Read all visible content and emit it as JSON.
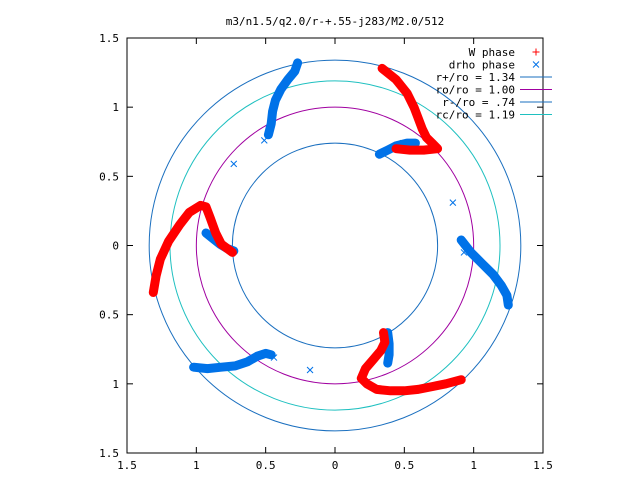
{
  "chart_data": {
    "type": "scatter",
    "title": "m3/n1.5/q2.0/r-+.55-j283/M2.0/512",
    "xlim": [
      -1.5,
      1.5
    ],
    "ylim": [
      -1.5,
      1.5
    ],
    "xticks": [
      -1.5,
      -1,
      -0.5,
      0,
      0.5,
      1,
      1.5
    ],
    "yticks": [
      -1.5,
      -1,
      -0.5,
      0,
      0.5,
      1,
      1.5
    ],
    "xtick_labels": [
      "1.5",
      "1",
      "0.5",
      "0",
      "0.5",
      "1",
      "1.5"
    ],
    "ytick_labels": [
      "1.5",
      "1",
      "0.5",
      "0",
      "0.5",
      "1",
      "1.5"
    ],
    "grid": false,
    "legend_position": "top-right",
    "series": [
      {
        "name": "W phase",
        "marker": "+",
        "color": "#ff0000",
        "arms": [
          [
            [
              0.34,
              1.28
            ],
            [
              0.44,
              1.2
            ],
            [
              0.52,
              1.1
            ],
            [
              0.57,
              1.0
            ],
            [
              0.6,
              0.92
            ],
            [
              0.63,
              0.84
            ],
            [
              0.66,
              0.78
            ],
            [
              0.7,
              0.74
            ],
            [
              0.74,
              0.7
            ],
            [
              0.64,
              0.69
            ],
            [
              0.54,
              0.69
            ],
            [
              0.44,
              0.7
            ]
          ],
          [
            [
              -1.31,
              -0.34
            ],
            [
              -1.29,
              -0.22
            ],
            [
              -1.26,
              -0.1
            ],
            [
              -1.2,
              0.03
            ],
            [
              -1.12,
              0.15
            ],
            [
              -1.05,
              0.24
            ],
            [
              -0.97,
              0.29
            ],
            [
              -0.93,
              0.28
            ],
            [
              -0.9,
              0.2
            ],
            [
              -0.86,
              0.09
            ],
            [
              -0.82,
              0.01
            ],
            [
              -0.74,
              -0.05
            ]
          ],
          [
            [
              0.91,
              -0.97
            ],
            [
              0.8,
              -1.0
            ],
            [
              0.7,
              -1.02
            ],
            [
              0.6,
              -1.04
            ],
            [
              0.5,
              -1.05
            ],
            [
              0.4,
              -1.05
            ],
            [
              0.3,
              -1.04
            ],
            [
              0.23,
              -1.0
            ],
            [
              0.19,
              -0.96
            ],
            [
              0.22,
              -0.89
            ],
            [
              0.28,
              -0.82
            ],
            [
              0.33,
              -0.76
            ],
            [
              0.36,
              -0.7
            ],
            [
              0.35,
              -0.63
            ]
          ]
        ]
      },
      {
        "name": "drho phase",
        "marker": "x",
        "color": "#0072e8",
        "arms": [
          [
            [
              -0.48,
              0.8
            ],
            [
              -0.46,
              0.88
            ],
            [
              -0.45,
              0.97
            ],
            [
              -0.43,
              1.05
            ],
            [
              -0.39,
              1.13
            ],
            [
              -0.34,
              1.2
            ],
            [
              -0.29,
              1.26
            ],
            [
              -0.27,
              1.32
            ]
          ],
          [
            [
              -0.93,
              0.09
            ],
            [
              -0.88,
              0.05
            ],
            [
              -0.83,
              0.01
            ],
            [
              -0.78,
              -0.02
            ],
            [
              -0.73,
              -0.04
            ]
          ],
          [
            [
              0.91,
              0.04
            ],
            [
              0.98,
              -0.05
            ],
            [
              1.06,
              -0.13
            ],
            [
              1.14,
              -0.21
            ],
            [
              1.2,
              -0.29
            ],
            [
              1.24,
              -0.36
            ],
            [
              1.25,
              -0.43
            ]
          ],
          [
            [
              0.38,
              -0.63
            ],
            [
              0.39,
              -0.71
            ],
            [
              0.39,
              -0.79
            ],
            [
              0.38,
              -0.85
            ]
          ],
          [
            [
              -1.02,
              -0.88
            ],
            [
              -0.92,
              -0.89
            ],
            [
              -0.82,
              -0.88
            ],
            [
              -0.72,
              -0.87
            ],
            [
              -0.63,
              -0.84
            ],
            [
              -0.56,
              -0.8
            ],
            [
              -0.5,
              -0.78
            ],
            [
              -0.46,
              -0.79
            ]
          ],
          [
            [
              0.32,
              0.66
            ],
            [
              0.38,
              0.69
            ],
            [
              0.44,
              0.72
            ],
            [
              0.52,
              0.74
            ],
            [
              0.58,
              0.74
            ]
          ]
        ],
        "scattered_points": [
          [
            -0.73,
            0.59
          ],
          [
            -0.51,
            0.76
          ],
          [
            0.85,
            0.31
          ],
          [
            0.93,
            -0.05
          ],
          [
            -0.44,
            -0.81
          ],
          [
            -0.18,
            -0.9
          ],
          [
            0.49,
            0.74
          ]
        ]
      }
    ],
    "circles": [
      {
        "label": "r+/ro = 1.34",
        "r": 1.34,
        "color": "#1a6fbf"
      },
      {
        "label": "ro/ro = 1.00",
        "r": 1.0,
        "color": "#a000a0"
      },
      {
        "label": "r-/ro = .74",
        "r": 0.74,
        "color": "#1a6fbf"
      },
      {
        "label": "rc/ro = 1.19",
        "r": 1.19,
        "color": "#1fc0c0"
      }
    ]
  }
}
